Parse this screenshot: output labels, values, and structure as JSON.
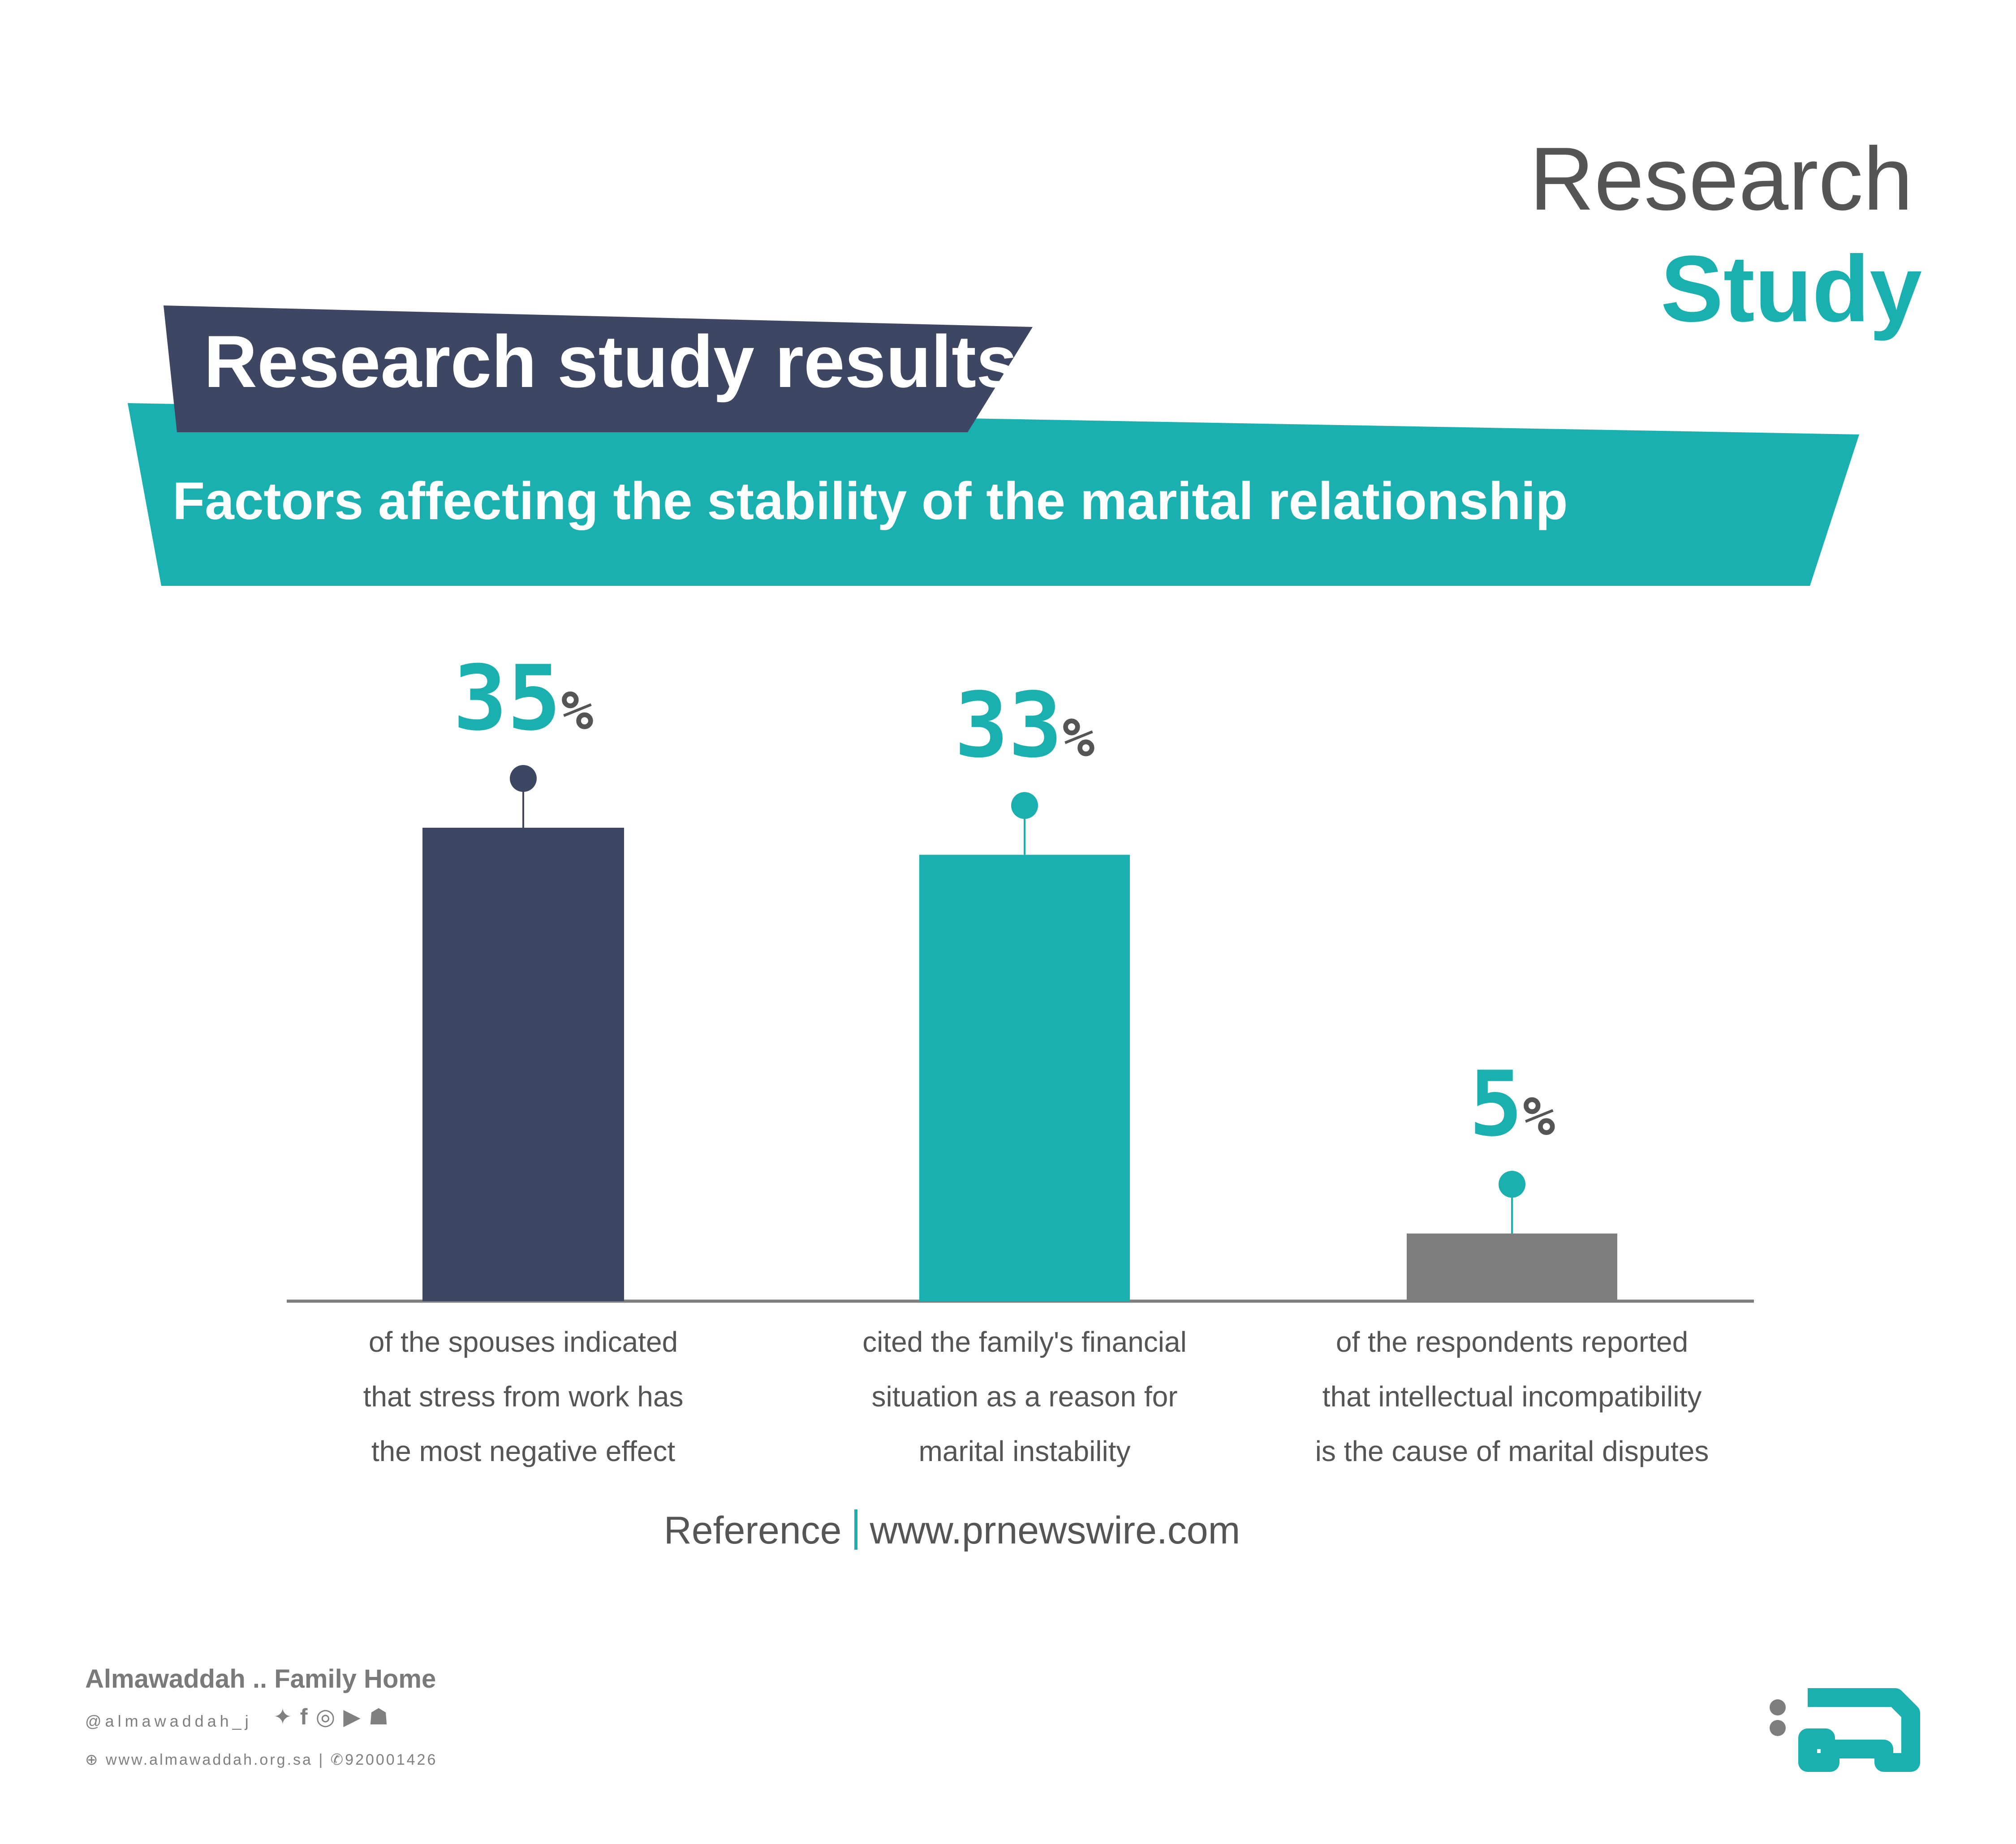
{
  "brand": {
    "word1": "Research",
    "word2": "Study"
  },
  "header": {
    "title": "Research study results",
    "subtitle": "Factors affecting the stability of the marital relationship"
  },
  "colors": {
    "navy": "#3D4663",
    "teal": "#1AB0B0",
    "gray": "#7E7E7E",
    "text": "#555555"
  },
  "chart_data": {
    "type": "bar",
    "title": "Factors affecting the stability of the marital relationship",
    "categories": [
      "of the spouses indicated that stress from work has the most negative effect",
      "cited the family's financial situation as a reason for marital instability",
      "of the respondents reported that intellectual incompatibility is the cause of marital disputes"
    ],
    "values": [
      35,
      33,
      5
    ],
    "value_labels": [
      {
        "number": "35",
        "unit": "%"
      },
      {
        "number": "33",
        "unit": "%"
      },
      {
        "number": "5",
        "unit": "%"
      }
    ],
    "captions": [
      [
        "of the spouses indicated",
        "that stress from work has",
        "the most negative effect"
      ],
      [
        "cited the family's financial",
        "situation as a reason for",
        "marital instability"
      ],
      [
        "of the respondents reported",
        "that intellectual incompatibility",
        "is the cause of marital disputes"
      ]
    ],
    "bar_colors": [
      "#3D4663",
      "#1AB0B0",
      "#7E7E7E"
    ],
    "marker_colors": [
      "#3D4663",
      "#1AB0B0",
      "#1AB0B0"
    ],
    "xlabel": "",
    "ylabel": "",
    "ylim": [
      0,
      35
    ],
    "grid": false,
    "legend": "none"
  },
  "reference": {
    "label": "Reference",
    "url": "www.prnewswire.com"
  },
  "footer": {
    "name": "Almawaddah .. Family Home",
    "handle": "@almawaddah_j",
    "social_icons": [
      "twitter-icon",
      "facebook-icon",
      "instagram-icon",
      "youtube-icon",
      "snapchat-icon"
    ],
    "website": "www.almawaddah.org.sa",
    "phone": "920001426"
  }
}
